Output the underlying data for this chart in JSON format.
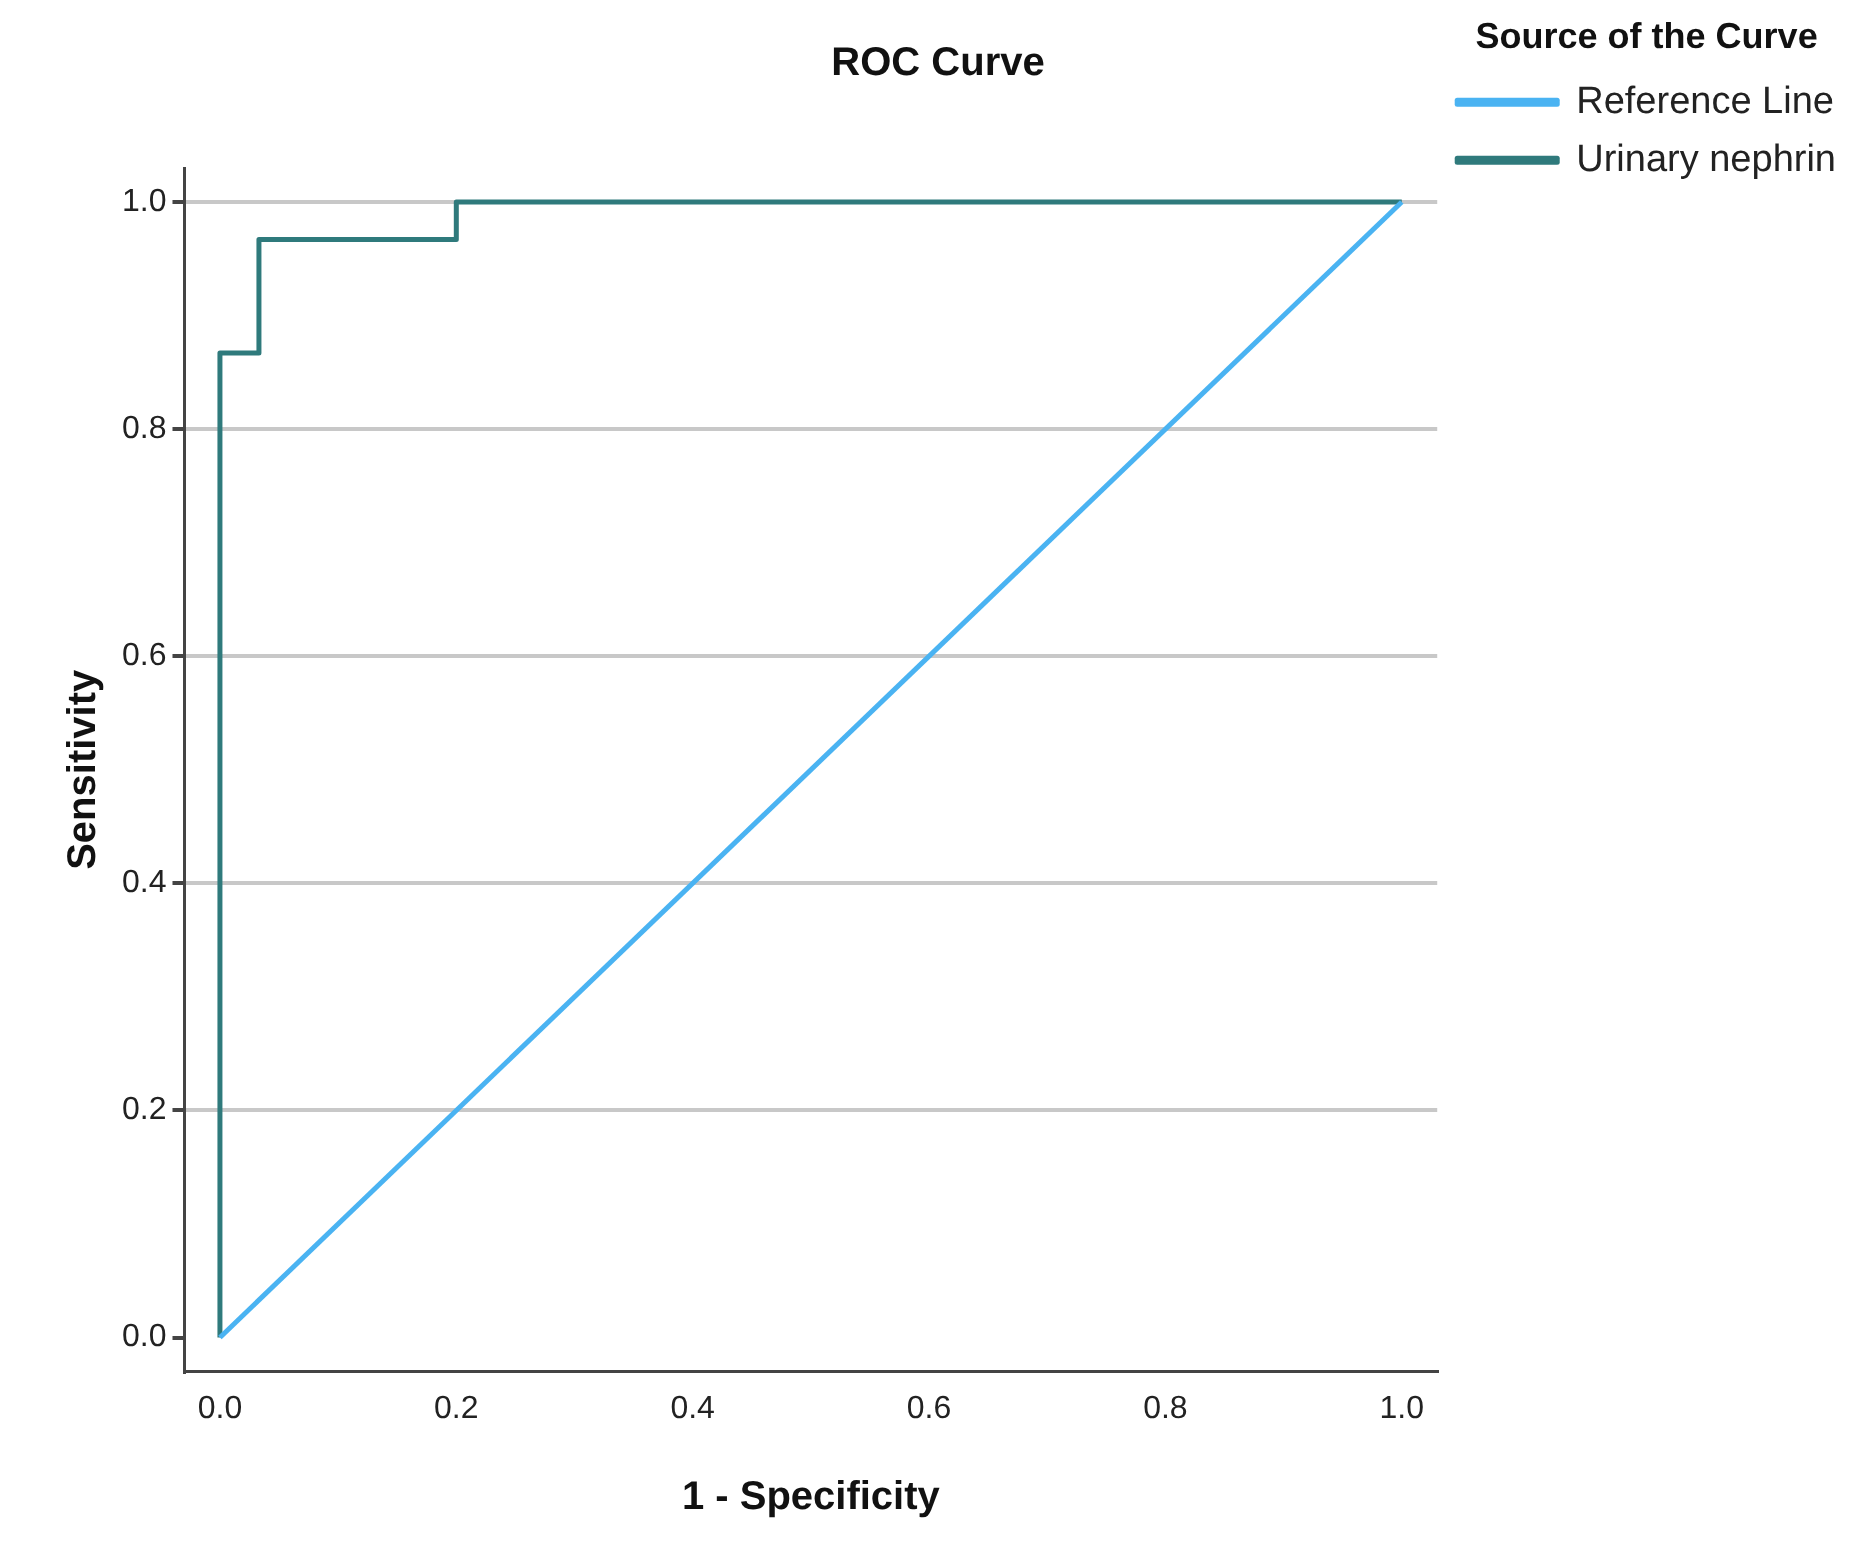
{
  "chart_data": {
    "type": "line",
    "title": "ROC Curve",
    "xlabel": "1 - Specificity",
    "ylabel": "Sensitivity",
    "legend_title": "Source of the Curve",
    "xlim": [
      -0.03,
      1.03
    ],
    "ylim": [
      -0.03,
      1.03
    ],
    "xticks": [
      {
        "value": 0,
        "label": "0.0"
      },
      {
        "value": 0.2,
        "label": "0.2"
      },
      {
        "value": 0.4,
        "label": "0.4"
      },
      {
        "value": 0.6,
        "label": "0.6"
      },
      {
        "value": 0.8,
        "label": "0.8"
      },
      {
        "value": 1,
        "label": "1.0"
      }
    ],
    "yticks": [
      {
        "value": 0,
        "label": "0.0"
      },
      {
        "value": 0.2,
        "label": "0.2"
      },
      {
        "value": 0.4,
        "label": "0.4"
      },
      {
        "value": 0.6,
        "label": "0.6"
      },
      {
        "value": 0.8,
        "label": "0.8"
      },
      {
        "value": 1,
        "label": "1.0"
      }
    ],
    "grid": "y",
    "legend": "right",
    "marker": "none",
    "line_style": "solid",
    "series": [
      {
        "name": "Reference Line",
        "color": "#4ab3f2",
        "x": [
          0,
          1
        ],
        "values": [
          0,
          1
        ]
      },
      {
        "name": "Urinary nephrin",
        "color": "#2f7a7c",
        "x": [
          0,
          0,
          0.033,
          0.033,
          0.2,
          0.2,
          1
        ],
        "values": [
          0,
          0.867,
          0.867,
          0.967,
          0.967,
          1,
          1
        ]
      }
    ]
  }
}
